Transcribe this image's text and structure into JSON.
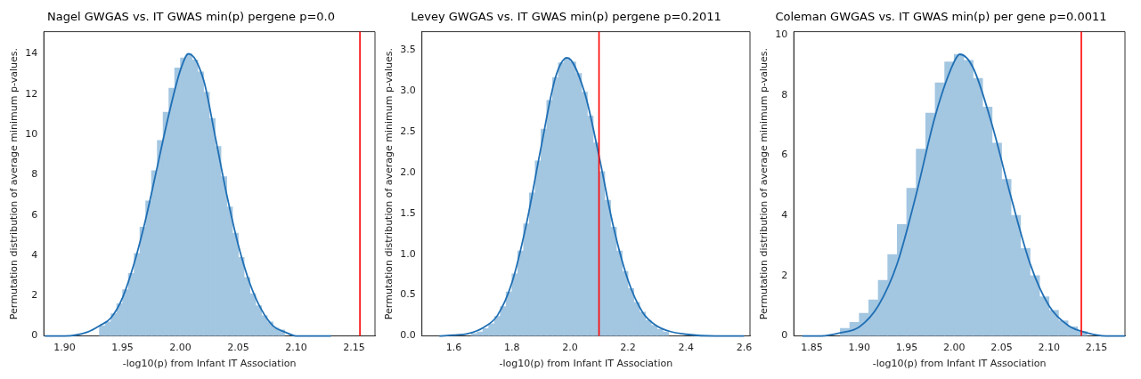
{
  "chart_data": [
    {
      "type": "histogram",
      "title": "Nagel GWGAS vs. IT GWAS min(p) pergene p=0.0",
      "xlabel": "-log10(p) from Infant IT Association",
      "ylabel": "Permutation distribution of average minimum p-values.",
      "bins": [
        1.93,
        1.935,
        1.94,
        1.945,
        1.95,
        1.955,
        1.96,
        1.965,
        1.97,
        1.975,
        1.98,
        1.985,
        1.99,
        1.995,
        2.0,
        2.005,
        2.01,
        2.015,
        2.02,
        2.025,
        2.03,
        2.035,
        2.04,
        2.045,
        2.05,
        2.055,
        2.06,
        2.065,
        2.07,
        2.075,
        2.08,
        2.085,
        2.09
      ],
      "values": [
        0.5,
        0.7,
        1.1,
        1.6,
        2.3,
        3.1,
        4.1,
        5.4,
        6.7,
        8.2,
        9.7,
        11.1,
        12.3,
        13.3,
        13.8,
        14.0,
        13.7,
        13.1,
        12.1,
        10.8,
        9.4,
        7.9,
        6.4,
        5.1,
        3.9,
        2.9,
        2.1,
        1.5,
        1.0,
        0.7,
        0.4,
        0.3
      ],
      "color": "#a3c6e1",
      "series": [
        {
          "type": "line",
          "color": "#1f6fb4",
          "x": [
            1.883,
            1.9,
            1.92,
            1.93,
            1.94,
            1.95,
            1.96,
            1.97,
            1.98,
            1.99,
            2.0,
            2.007,
            2.02,
            2.03,
            2.04,
            2.05,
            2.06,
            2.07,
            2.08,
            2.09,
            2.1,
            2.12,
            2.13
          ],
          "values": [
            0,
            0,
            0.2,
            0.5,
            0.9,
            1.9,
            3.6,
            5.8,
            8.4,
            11.0,
            13.2,
            14.0,
            12.7,
            9.9,
            7.0,
            4.5,
            2.6,
            1.3,
            0.5,
            0.2,
            0,
            0,
            0
          ]
        }
      ],
      "ref_lines": [
        {
          "axis": "x",
          "value": 2.155,
          "color": "#ff0000"
        }
      ],
      "xlim": [
        1.882,
        2.168
      ],
      "ylim": [
        0,
        15.1
      ],
      "xticks": [
        {
          "value": 1.9,
          "label": "1.90"
        },
        {
          "value": 1.95,
          "label": "1.95"
        },
        {
          "value": 2.0,
          "label": "2.00"
        },
        {
          "value": 2.05,
          "label": "2.05"
        },
        {
          "value": 2.1,
          "label": "2.10"
        },
        {
          "value": 2.15,
          "label": "2.15"
        }
      ],
      "yticks": [
        0,
        2,
        4,
        6,
        8,
        10,
        12,
        14
      ]
    },
    {
      "type": "histogram",
      "title": "Levey GWGAS vs. IT GWAS min(p) pergene p=0.2011",
      "xlabel": "-log10(p) from Infant IT Association",
      "ylabel": "Permutation distribution of average minimum p-values.",
      "bins": [
        1.66,
        1.68,
        1.7,
        1.72,
        1.74,
        1.76,
        1.78,
        1.8,
        1.82,
        1.84,
        1.86,
        1.88,
        1.9,
        1.92,
        1.94,
        1.96,
        1.98,
        2.0,
        2.02,
        2.04,
        2.06,
        2.08,
        2.1,
        2.12,
        2.14,
        2.16,
        2.18,
        2.2,
        2.22,
        2.24,
        2.26,
        2.28,
        2.3,
        2.32,
        2.34
      ],
      "values": [
        0.03,
        0.05,
        0.09,
        0.15,
        0.24,
        0.36,
        0.54,
        0.76,
        1.04,
        1.37,
        1.75,
        2.14,
        2.53,
        2.88,
        3.16,
        3.34,
        3.4,
        3.35,
        3.21,
        2.98,
        2.69,
        2.36,
        2.01,
        1.66,
        1.33,
        1.04,
        0.79,
        0.58,
        0.41,
        0.29,
        0.19,
        0.13,
        0.08,
        0.05
      ],
      "color": "#a3c6e1",
      "series": [
        {
          "type": "line",
          "color": "#1f6fb4",
          "x": [
            1.55,
            1.6,
            1.65,
            1.7,
            1.75,
            1.8,
            1.85,
            1.9,
            1.95,
            1.99,
            2.05,
            2.1,
            2.15,
            2.2,
            2.25,
            2.3,
            2.35,
            2.4,
            2.5,
            2.6
          ],
          "values": [
            0,
            0.01,
            0.03,
            0.1,
            0.25,
            0.65,
            1.37,
            2.3,
            3.16,
            3.4,
            2.98,
            2.2,
            1.33,
            0.68,
            0.29,
            0.12,
            0.05,
            0.02,
            0,
            0
          ]
        }
      ],
      "ref_lines": [
        {
          "axis": "x",
          "value": 2.1,
          "color": "#ff0000"
        }
      ],
      "xlim": [
        1.49,
        2.62
      ],
      "ylim": [
        0,
        3.72
      ],
      "xticks": [
        {
          "value": 1.6,
          "label": "1.6"
        },
        {
          "value": 1.8,
          "label": "1.8"
        },
        {
          "value": 2.0,
          "label": "2.0"
        },
        {
          "value": 2.2,
          "label": "2.2"
        },
        {
          "value": 2.4,
          "label": "2.4"
        },
        {
          "value": 2.6,
          "label": "2.6"
        }
      ],
      "yticks": [
        {
          "value": 0,
          "label": "0.0"
        },
        {
          "value": 0.5,
          "label": "0.5"
        },
        {
          "value": 1,
          "label": "1.0"
        },
        {
          "value": 1.5,
          "label": "1.5"
        },
        {
          "value": 2,
          "label": "2.0"
        },
        {
          "value": 2.5,
          "label": "2.5"
        },
        {
          "value": 3,
          "label": "3.0"
        },
        {
          "value": 3.5,
          "label": "3.5"
        }
      ]
    },
    {
      "type": "histogram",
      "title": "Coleman GWGAS vs. IT GWAS min(p) per gene p=0.0011",
      "xlabel": "-log10(p) from Infant IT Association",
      "ylabel": "Permutation distribution of average minimum p-values.",
      "bins": [
        1.88,
        1.89,
        1.9,
        1.91,
        1.92,
        1.93,
        1.94,
        1.95,
        1.96,
        1.97,
        1.98,
        1.99,
        2.0,
        2.01,
        2.02,
        2.03,
        2.04,
        2.05,
        2.06,
        2.07,
        2.08,
        2.09,
        2.1,
        2.11,
        2.12,
        2.13,
        2.14
      ],
      "values": [
        0.25,
        0.45,
        0.75,
        1.2,
        1.85,
        2.7,
        3.7,
        4.9,
        6.2,
        7.4,
        8.4,
        9.1,
        9.35,
        9.15,
        8.55,
        7.6,
        6.4,
        5.2,
        4.0,
        2.9,
        2.0,
        1.3,
        0.85,
        0.5,
        0.3,
        0.15
      ],
      "color": "#a3c6e1",
      "series": [
        {
          "type": "line",
          "color": "#1f6fb4",
          "x": [
            1.84,
            1.86,
            1.88,
            1.9,
            1.92,
            1.94,
            1.96,
            1.98,
            2.0,
            2.006,
            2.02,
            2.04,
            2.06,
            2.08,
            2.1,
            2.12,
            2.14,
            2.16,
            2.18
          ],
          "values": [
            0,
            0,
            0.1,
            0.3,
            1.0,
            2.4,
            4.7,
            7.3,
            9.1,
            9.35,
            8.9,
            7.0,
            4.6,
            2.4,
            1.0,
            0.35,
            0.1,
            0,
            0
          ]
        }
      ],
      "ref_lines": [
        {
          "axis": "x",
          "value": 2.134,
          "color": "#ff0000"
        }
      ],
      "xlim": [
        1.831,
        2.18
      ],
      "ylim": [
        0,
        10.1
      ],
      "xticks": [
        {
          "value": 1.85,
          "label": "1.85"
        },
        {
          "value": 1.9,
          "label": "1.90"
        },
        {
          "value": 1.95,
          "label": "1.95"
        },
        {
          "value": 2.0,
          "label": "2.00"
        },
        {
          "value": 2.05,
          "label": "2.05"
        },
        {
          "value": 2.1,
          "label": "2.10"
        },
        {
          "value": 2.15,
          "label": "2.15"
        }
      ],
      "yticks": [
        0,
        2,
        4,
        6,
        8,
        10
      ]
    }
  ]
}
